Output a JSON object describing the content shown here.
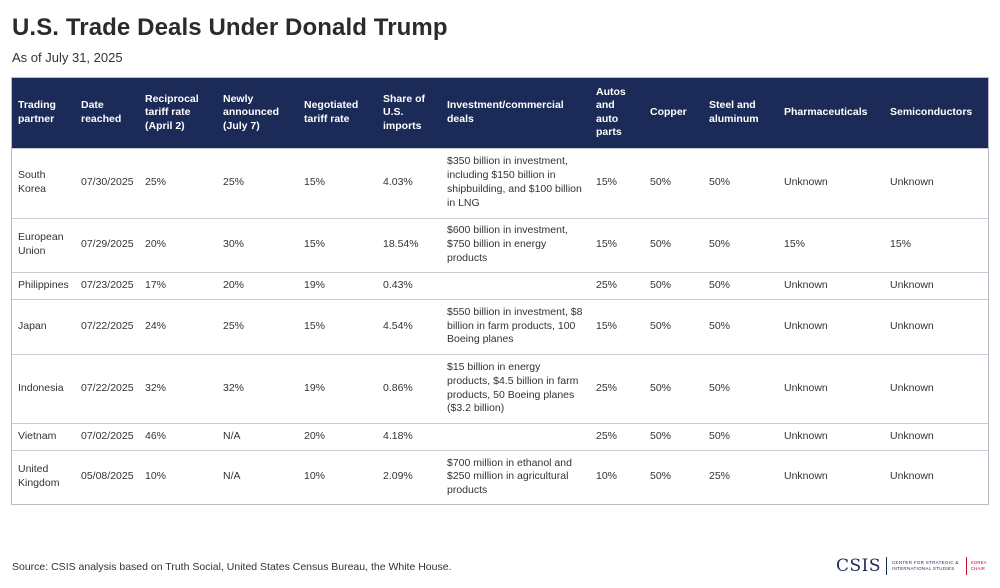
{
  "header": {
    "title": "U.S. Trade Deals Under Donald Trump",
    "subtitle": "As of July 31, 2025"
  },
  "table": {
    "columns": [
      "Trading partner",
      "Date reached",
      "Reciprocal tariff rate (April 2)",
      "Newly announced (July 7)",
      "Negotiated tariff rate",
      "Share of U.S. imports",
      "Investment/commercial deals",
      "Autos and auto parts",
      "Copper",
      "Steel and aluminum",
      "Pharmaceuticals",
      "Semiconductors"
    ],
    "rows": [
      [
        "South Korea",
        "07/30/2025",
        "25%",
        "25%",
        "15%",
        "4.03%",
        "$350 billion in investment, including $150 billion in shipbuilding, and $100 billion in LNG",
        "15%",
        "50%",
        "50%",
        "Unknown",
        "Unknown"
      ],
      [
        "European Union",
        "07/29/2025",
        "20%",
        "30%",
        "15%",
        "18.54%",
        "$600 billion in investment, $750 billion in energy products",
        "15%",
        "50%",
        "50%",
        "15%",
        "15%"
      ],
      [
        "Philippines",
        "07/23/2025",
        "17%",
        "20%",
        "19%",
        "0.43%",
        "",
        "25%",
        "50%",
        "50%",
        "Unknown",
        "Unknown"
      ],
      [
        "Japan",
        "07/22/2025",
        "24%",
        "25%",
        "15%",
        "4.54%",
        "$550 billion in investment, $8 billion in farm products, 100 Boeing planes",
        "15%",
        "50%",
        "50%",
        "Unknown",
        "Unknown"
      ],
      [
        "Indonesia",
        "07/22/2025",
        "32%",
        "32%",
        "19%",
        "0.86%",
        "$15 billion in energy products, $4.5 billion in farm products, 50 Boeing planes ($3.2 billion)",
        "25%",
        "50%",
        "50%",
        "Unknown",
        "Unknown"
      ],
      [
        "Vietnam",
        "07/02/2025",
        "46%",
        "N/A",
        "20%",
        "4.18%",
        "",
        "25%",
        "50%",
        "50%",
        "Unknown",
        "Unknown"
      ],
      [
        "United Kingdom",
        "05/08/2025",
        "10%",
        "N/A",
        "10%",
        "2.09%",
        "$700 million in ethanol and $250 million in agricultural products",
        "10%",
        "50%",
        "25%",
        "Unknown",
        "Unknown"
      ]
    ]
  },
  "footer": {
    "source": "Source: CSIS analysis based on Truth Social, United States Census Bureau, the White House.",
    "logo_mark": "CSIS",
    "logo_text": "CENTER FOR STRATEGIC & INTERNATIONAL STUDIES",
    "logo_korea": "KOREA CHAIR"
  },
  "colors": {
    "header_bg": "#1b2a56",
    "brand": "#1b2a56",
    "accent": "#c8102e"
  }
}
